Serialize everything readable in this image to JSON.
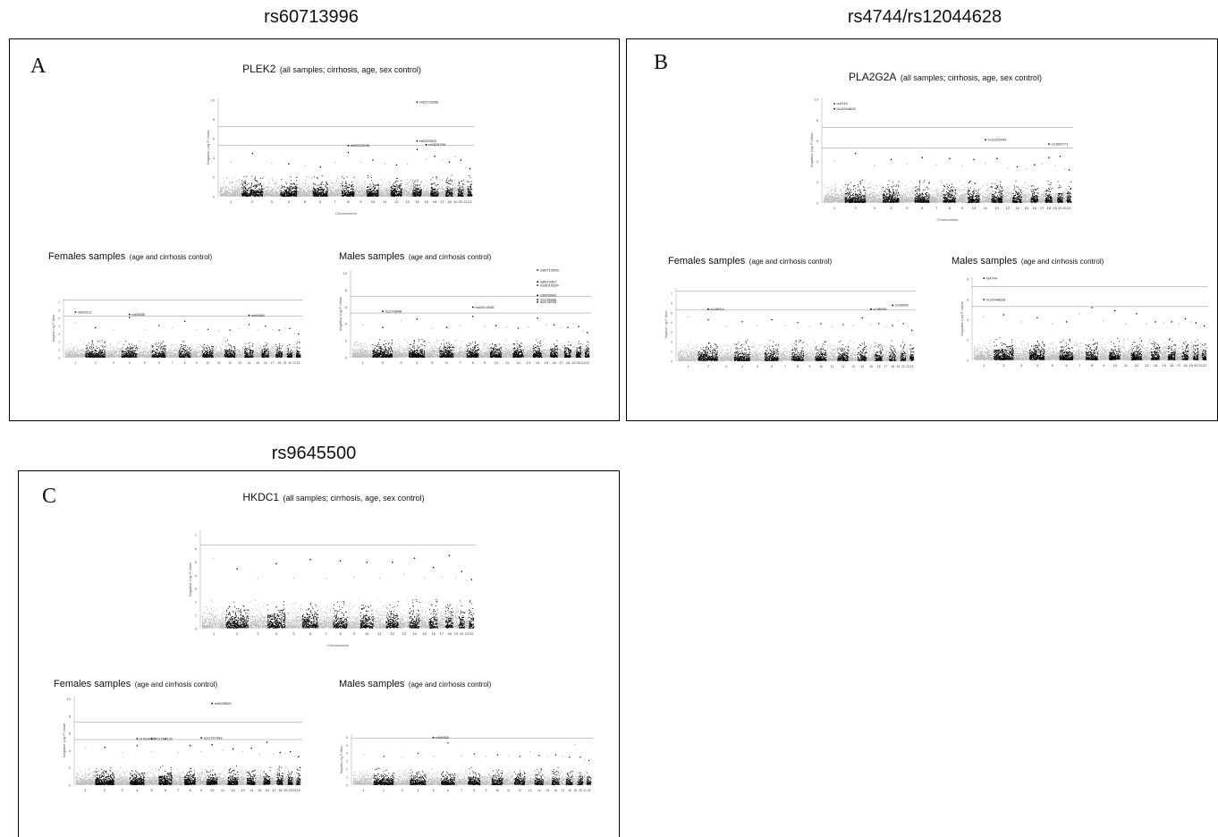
{
  "figure": {
    "section_titles": [
      "rs60713996",
      "rs4744/rs12044628",
      "rs9645500"
    ],
    "panels": [
      {
        "letter": "A",
        "gene": "PLEK2",
        "heading_note": "(all samples; cirrhosis, age, sex control)",
        "females_label": "Females samples",
        "females_note": "(age and cirrhosis control)",
        "males_label": "Males samples",
        "males_note": "(age and cirrhosis control)"
      },
      {
        "letter": "B",
        "gene": "PLA2G2A",
        "heading_note": "(all samples; cirrhosis, age, sex control)",
        "females_label": "Females samples",
        "females_note": "(age and cirrhosis control)",
        "males_label": "Males samples",
        "males_note": "(age and cirrhosis control)"
      },
      {
        "letter": "C",
        "gene": "HKDC1",
        "heading_note": "(all samples; cirrhosis, age, sex control)",
        "females_label": "Females samples",
        "females_note": "(age and cirrhosis control)",
        "males_label": "Males samples",
        "males_note": "(age and cirrhosis control)"
      }
    ]
  },
  "chart_data": [
    {
      "id": "A-all",
      "type": "scatter",
      "xlabel": "Chromosome",
      "ylabel": "Negative Log P-Value",
      "ylim": [
        0,
        10.2
      ],
      "yticks": [
        0,
        2,
        4,
        6,
        8,
        10,
        12
      ],
      "categories": [
        "1",
        "2",
        "3",
        "4",
        "5",
        "6",
        "7",
        "8",
        "9",
        "10",
        "11",
        "12",
        "13",
        "14",
        "15",
        "16",
        "17",
        "18",
        "19",
        "20",
        "21",
        "22"
      ],
      "peak_values": [
        3.6,
        4.5,
        3.5,
        3.4,
        3.2,
        3.1,
        3.5,
        4.6,
        3.6,
        3.8,
        3.4,
        3.3,
        3.4,
        4.9,
        3.9,
        4.2,
        3.8,
        3.6,
        4.1,
        3.8,
        3.0,
        2.9
      ],
      "threshold_lines": [
        7.3,
        5.3
      ],
      "annotations": [
        {
          "label": "rs60713996",
          "chr": "14",
          "y": 9.8
        },
        {
          "label": "rs8020363",
          "chr": "14",
          "y": 5.8
        },
        {
          "label": "rs9828798",
          "chr": "15",
          "y": 5.4
        },
        {
          "label": "rs62012635",
          "chr": "8",
          "y": 5.3
        }
      ]
    },
    {
      "id": "A-females",
      "type": "scatter",
      "xlabel": "",
      "ylabel": "Negative Log P-Value",
      "ylim": [
        0,
        7.5
      ],
      "yticks": [
        0,
        1,
        2,
        3,
        4,
        5,
        6,
        7
      ],
      "categories": [
        "1",
        "2",
        "3",
        "4",
        "5",
        "6",
        "7",
        "8",
        "9",
        "10",
        "11",
        "12",
        "13",
        "14",
        "15",
        "16",
        "17",
        "18",
        "19",
        "20",
        "21",
        "22"
      ],
      "peak_values": [
        4.4,
        3.8,
        3.6,
        5.1,
        3.6,
        4.1,
        3.8,
        4.6,
        3.5,
        3.6,
        3.4,
        3.5,
        3.7,
        4.2,
        3.6,
        4.0,
        3.6,
        3.5,
        3.8,
        3.7,
        3.1,
        3.0
      ],
      "threshold_lines": [
        7.3,
        5.3
      ],
      "annotations": [
        {
          "label": "rs6093113",
          "chr": "1",
          "y": 5.8
        },
        {
          "label": "rs6050580",
          "chr": "4",
          "y": 5.5
        },
        {
          "label": "rs6063810",
          "chr": "14",
          "y": 5.4
        }
      ]
    },
    {
      "id": "A-males",
      "type": "scatter",
      "xlabel": "",
      "ylabel": "Negative Log P-Value",
      "ylim": [
        0,
        10.4
      ],
      "yticks": [
        0,
        2,
        4,
        6,
        8,
        10
      ],
      "categories": [
        "1",
        "2",
        "3",
        "4",
        "5",
        "6",
        "7",
        "8",
        "9",
        "10",
        "11",
        "12",
        "13",
        "14",
        "15",
        "16",
        "17",
        "18",
        "19",
        "20",
        "21",
        "22"
      ],
      "peak_values": [
        3.9,
        3.6,
        4.4,
        4.6,
        3.5,
        3.6,
        3.8,
        4.9,
        3.7,
        3.8,
        3.6,
        3.5,
        3.6,
        4.7,
        3.9,
        3.9,
        3.6,
        3.6,
        4.0,
        3.7,
        3.2,
        3.0
      ],
      "threshold_lines": [
        7.3,
        5.3
      ],
      "annotations": [
        {
          "label": "rs60713996",
          "chr": "14",
          "y": 10.4
        },
        {
          "label": "rs8019367",
          "chr": "14",
          "y": 9.0
        },
        {
          "label": "rs28015264",
          "chr": "14",
          "y": 8.6
        },
        {
          "label": "rs6006042",
          "chr": "14",
          "y": 7.4
        },
        {
          "label": "rs1174890",
          "chr": "14",
          "y": 6.9
        },
        {
          "label": "rs1178033",
          "chr": "14",
          "y": 6.6
        },
        {
          "label": "rs62012635",
          "chr": "8",
          "y": 6.0
        },
        {
          "label": "rs1173848",
          "chr": "2",
          "y": 5.5
        }
      ]
    },
    {
      "id": "B-all",
      "type": "scatter",
      "xlabel": "Chromosome",
      "ylabel": "Negative Log P-Value",
      "ylim": [
        0,
        10.2
      ],
      "yticks": [
        0,
        2,
        4,
        6,
        8,
        10
      ],
      "categories": [
        "1",
        "2",
        "3",
        "4",
        "5",
        "6",
        "7",
        "8",
        "9",
        "10",
        "11",
        "12",
        "13",
        "14",
        "15",
        "16",
        "17",
        "18",
        "19",
        "20",
        "21",
        "22"
      ],
      "peak_values": [
        4.1,
        4.8,
        3.6,
        4.2,
        3.8,
        4.4,
        3.7,
        4.3,
        3.6,
        4.2,
        3.8,
        4.3,
        3.4,
        3.5,
        3.3,
        3.7,
        3.8,
        4.4,
        3.6,
        4.5,
        3.3,
        3.2
      ],
      "threshold_lines": [
        7.3,
        5.3
      ],
      "annotations": [
        {
          "label": "rs4744",
          "chr": "1",
          "y": 9.6
        },
        {
          "label": "rs12044628",
          "chr": "1",
          "y": 9.1
        },
        {
          "label": "rs11200999",
          "chr": "11",
          "y": 6.1
        },
        {
          "label": "rs1060771",
          "chr": "18",
          "y": 5.7
        }
      ]
    },
    {
      "id": "B-females",
      "type": "scatter",
      "xlabel": "",
      "ylabel": "Negative Log P-Value",
      "ylim": [
        0,
        7.6
      ],
      "yticks": [
        0,
        1,
        2,
        3,
        4,
        5,
        6,
        7
      ],
      "categories": [
        "1",
        "2",
        "3",
        "4",
        "5",
        "6",
        "7",
        "8",
        "9",
        "10",
        "11",
        "12",
        "13",
        "14",
        "15",
        "16",
        "17",
        "18",
        "19",
        "20",
        "21",
        "22"
      ],
      "peak_values": [
        4.6,
        4.3,
        3.6,
        4.1,
        3.7,
        4.3,
        3.7,
        4.0,
        3.6,
        3.9,
        3.6,
        3.8,
        3.7,
        4.5,
        3.8,
        3.9,
        3.6,
        3.7,
        4.2,
        3.9,
        3.6,
        3.2
      ],
      "threshold_lines": [
        7.3,
        5.3
      ],
      "annotations": [
        {
          "label": "rs1060514",
          "chr": "2",
          "y": 5.4
        },
        {
          "label": "rs7480909",
          "chr": "15",
          "y": 5.4
        },
        {
          "label": "rs1098308",
          "chr": "18",
          "y": 5.8
        }
      ]
    },
    {
      "id": "B-males",
      "type": "scatter",
      "xlabel": "",
      "ylabel": "Negative Log P-Value",
      "ylim": [
        0,
        8.2
      ],
      "yticks": [
        0,
        2,
        4,
        6,
        8
      ],
      "categories": [
        "1",
        "2",
        "3",
        "4",
        "5",
        "6",
        "7",
        "8",
        "9",
        "10",
        "11",
        "12",
        "13",
        "14",
        "15",
        "16",
        "17",
        "18",
        "19",
        "20",
        "21",
        "22"
      ],
      "peak_values": [
        4.3,
        4.5,
        3.8,
        4.2,
        3.6,
        3.8,
        4.6,
        5.2,
        3.9,
        4.9,
        3.6,
        4.6,
        3.6,
        3.8,
        3.7,
        3.8,
        3.6,
        4.1,
        3.8,
        3.7,
        3.3,
        3.4
      ],
      "threshold_lines": [
        7.3,
        5.3
      ],
      "annotations": [
        {
          "label": "rs4744",
          "chr": "1",
          "y": 8.1
        },
        {
          "label": "rs12044628",
          "chr": "1",
          "y": 6.0
        }
      ]
    },
    {
      "id": "C-all",
      "type": "scatter",
      "xlabel": "Chromosome",
      "ylabel": "Negative Log P-Value",
      "ylim": [
        0,
        7.4
      ],
      "yticks": [
        0,
        1,
        2,
        3,
        4,
        5,
        6,
        7
      ],
      "categories": [
        "1",
        "2",
        "3",
        "4",
        "5",
        "6",
        "7",
        "8",
        "9",
        "10",
        "11",
        "12",
        "13",
        "14",
        "15",
        "16",
        "17",
        "18",
        "19",
        "20",
        "21",
        "22"
      ],
      "peak_values": [
        5.3,
        4.5,
        3.8,
        4.9,
        3.8,
        5.2,
        3.8,
        5.1,
        3.9,
        5.0,
        3.8,
        5.0,
        4.1,
        5.3,
        3.8,
        4.6,
        3.9,
        5.5,
        3.8,
        4.3,
        3.6,
        3.7
      ],
      "threshold_lines": [
        6.3
      ],
      "annotations": []
    },
    {
      "id": "C-females",
      "type": "scatter",
      "xlabel": "",
      "ylabel": "Negative Log P-Value",
      "ylim": [
        0,
        10.4
      ],
      "yticks": [
        0,
        2,
        4,
        6,
        8,
        10
      ],
      "categories": [
        "1",
        "2",
        "3",
        "4",
        "5",
        "6",
        "7",
        "8",
        "9",
        "10",
        "11",
        "12",
        "13",
        "14",
        "15",
        "16",
        "17",
        "18",
        "19",
        "20",
        "21",
        "22"
      ],
      "peak_values": [
        4.4,
        4.4,
        3.8,
        4.6,
        3.9,
        5.4,
        3.8,
        4.6,
        3.9,
        4.7,
        4.1,
        4.2,
        3.9,
        4.3,
        3.6,
        5.0,
        3.6,
        3.8,
        3.7,
        3.9,
        3.4,
        3.3
      ],
      "threshold_lines": [
        7.3,
        5.3
      ],
      "annotations": [
        {
          "label": "rs9645500",
          "chr": "10",
          "y": 9.5
        },
        {
          "label": "rs7624457",
          "chr": "4",
          "y": 5.4
        },
        {
          "label": "rs11764132",
          "chr": "5",
          "y": 5.4
        },
        {
          "label": "rs11797433",
          "chr": "9",
          "y": 5.5
        }
      ]
    },
    {
      "id": "C-males",
      "type": "scatter",
      "xlabel": "",
      "ylabel": "Negative Log P-Value",
      "ylim": [
        0,
        6.4
      ],
      "yticks": [
        0,
        1,
        2,
        3,
        4,
        5,
        6
      ],
      "categories": [
        "1",
        "2",
        "3",
        "4",
        "5",
        "6",
        "7",
        "8",
        "9",
        "10",
        "11",
        "12",
        "13",
        "14",
        "15",
        "16",
        "17",
        "18",
        "19",
        "20",
        "21",
        "22"
      ],
      "peak_values": [
        3.8,
        3.6,
        3.5,
        4.0,
        3.6,
        5.3,
        3.7,
        3.9,
        3.6,
        3.8,
        3.7,
        3.6,
        4.2,
        3.7,
        3.6,
        3.8,
        3.6,
        3.5,
        5.1,
        3.5,
        3.2,
        3.1
      ],
      "threshold_lines": [
        5.9
      ],
      "annotations": [
        {
          "label": "rs9645500",
          "chr": "5",
          "y": 6.0
        }
      ]
    }
  ]
}
